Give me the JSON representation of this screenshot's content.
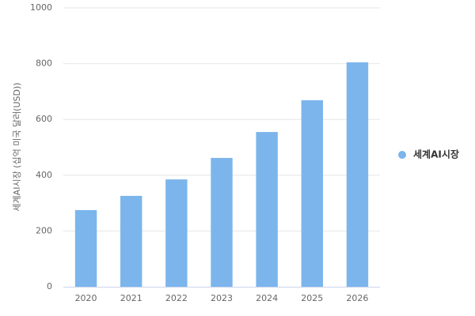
{
  "chart_data": {
    "type": "bar",
    "y_label": "세계AI시장 (십억 미국 달러(USD))",
    "categories": [
      "2020",
      "2021",
      "2022",
      "2023",
      "2024",
      "2025",
      "2026"
    ],
    "series": [
      {
        "name": "세계AI시장",
        "color": "#7cb5ec",
        "values": [
          275,
          326,
          385,
          462,
          555,
          669,
          805
        ]
      }
    ],
    "ylim": [
      0,
      1000
    ],
    "yticks": [
      0,
      200,
      400,
      600,
      800,
      1000
    ],
    "grid": true,
    "legend": "right"
  }
}
